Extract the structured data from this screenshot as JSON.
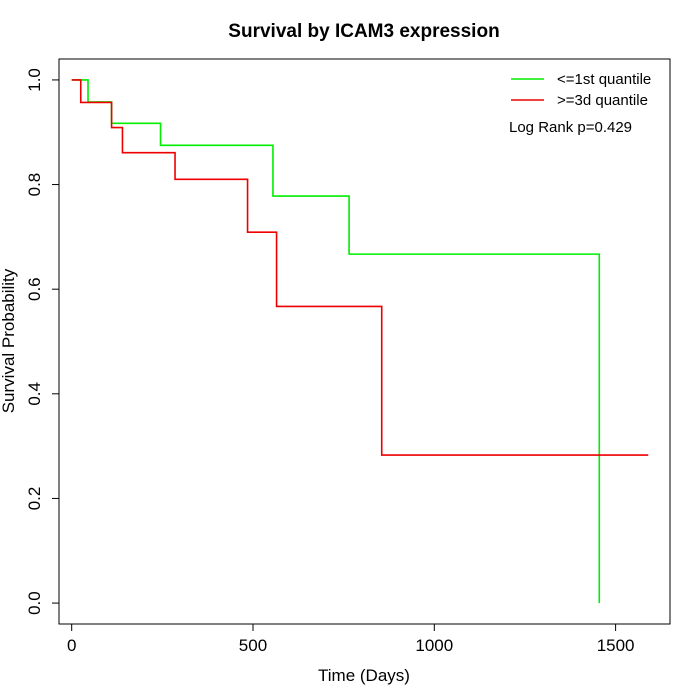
{
  "chart_data": {
    "type": "line",
    "step": true,
    "title": "Survival by ICAM3 expression",
    "xlabel": "Time (Days)",
    "ylabel": "Survival Probability",
    "xlim": [
      -35,
      1650
    ],
    "ylim": [
      -0.04,
      1.04
    ],
    "xticks": [
      0,
      500,
      1000,
      1500
    ],
    "yticks": [
      0.0,
      0.2,
      0.4,
      0.6,
      0.8,
      1.0
    ],
    "xtick_labels": [
      "0",
      "500",
      "1000",
      "1500"
    ],
    "ytick_labels": [
      "0.0",
      "0.2",
      "0.4",
      "0.6",
      "0.8",
      "1.0"
    ],
    "grid": false,
    "legend_position": "top-right",
    "annotation": "Log Rank p=0.429",
    "series": [
      {
        "name": "<=1st quantile",
        "color": "#00ee00",
        "times": [
          0,
          45,
          110,
          245,
          555,
          765,
          1455
        ],
        "survival": [
          1.0,
          0.958,
          0.917,
          0.875,
          0.778,
          0.667,
          0.0
        ]
      },
      {
        "name": ">=3d quantile",
        "color": "#ee0000",
        "times": [
          0,
          25,
          110,
          140,
          285,
          485,
          565,
          855
        ],
        "survival": [
          1.0,
          0.957,
          0.909,
          0.861,
          0.81,
          0.709,
          0.567,
          0.283
        ],
        "end_time": 1590
      }
    ]
  }
}
